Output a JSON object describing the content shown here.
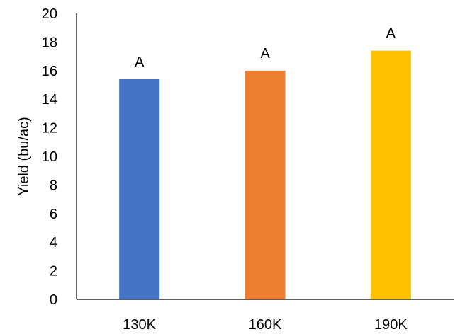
{
  "chart_data": {
    "type": "bar",
    "title": "",
    "xlabel": "",
    "ylabel": "Yield (bu/ac)",
    "categories": [
      "130K",
      "160K",
      "190K"
    ],
    "values": [
      15.4,
      16.0,
      17.4
    ],
    "data_labels": [
      "A",
      "A",
      "A"
    ],
    "colors": [
      "#4472C4",
      "#ED7D31",
      "#FFC000"
    ],
    "ylim": [
      0,
      20
    ],
    "yticks": [
      0,
      2,
      4,
      6,
      8,
      10,
      12,
      14,
      16,
      18,
      20
    ],
    "ytick_labels": [
      "0",
      "2",
      "4",
      "6",
      "8",
      "10",
      "12",
      "14",
      "16",
      "18",
      "20"
    ],
    "grid": false,
    "legend": "none"
  }
}
